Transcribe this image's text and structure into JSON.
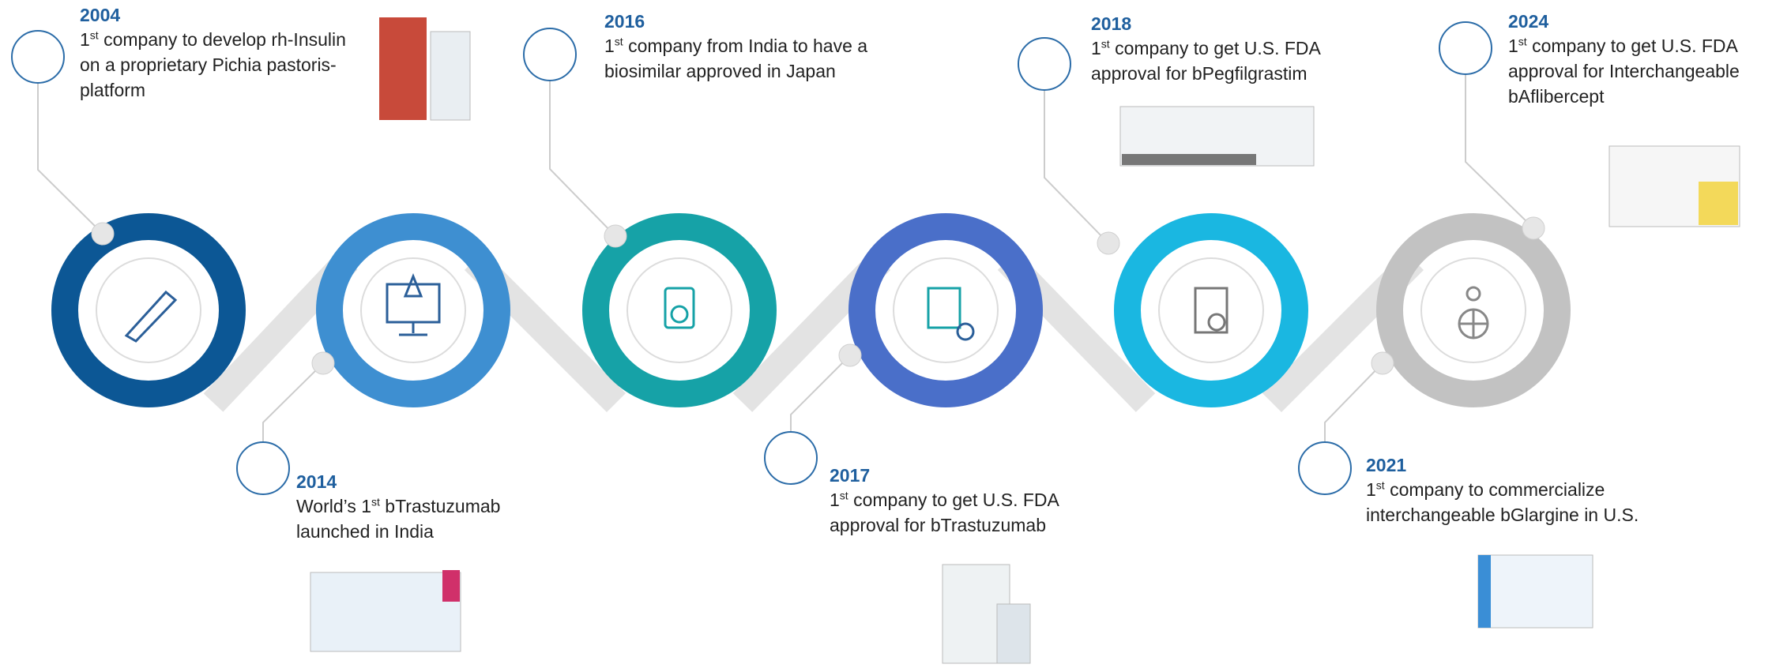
{
  "milestones": [
    {
      "year": "2004",
      "prefix": "1",
      "sup": "st",
      "text": " company to develop rh-Insulin on a proprietary Pichia pastoris-platform"
    },
    {
      "year": "2014",
      "prefix": "World’s 1",
      "sup": "st",
      "text": " bTrastuzumab launched in India"
    },
    {
      "year": "2016",
      "prefix": "1",
      "sup": "st",
      "text": " company from India to have a biosimilar approved in Japan"
    },
    {
      "year": "2017",
      "prefix": "1",
      "sup": "st",
      "text": " company to get U.S. FDA approval for bTrastuzumab"
    },
    {
      "year": "2018",
      "prefix": "1",
      "sup": "st",
      "text": " company to get U.S. FDA approval for bPegfilgrastim"
    },
    {
      "year": "2021",
      "prefix": "1",
      "sup": "st",
      "text": " company to commercialize interchangeable bGlargine in U.S."
    },
    {
      "year": "2024",
      "prefix": "1",
      "sup": "st",
      "text": " company to get U.S. FDA approval for Interchangeable bAflibercept"
    }
  ]
}
